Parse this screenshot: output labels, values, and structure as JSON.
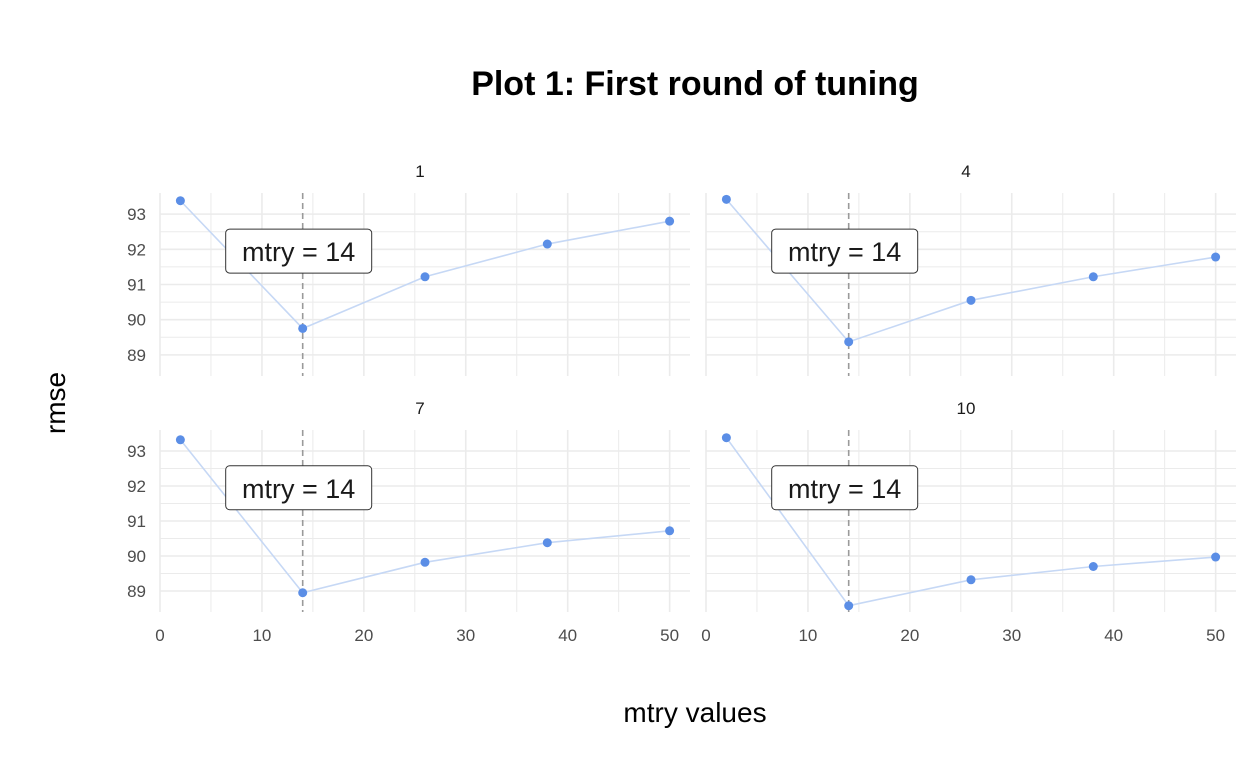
{
  "chart_data": {
    "type": "line",
    "title": "Plot 1: First round of tuning",
    "xlabel": "mtry values",
    "ylabel": "rmse",
    "xlim": [
      0,
      52
    ],
    "ylim": [
      88.4,
      93.6
    ],
    "xticks": [
      0,
      10,
      20,
      30,
      40,
      50
    ],
    "yticks": [
      89,
      90,
      91,
      92,
      93
    ],
    "grid": true,
    "reference_line": {
      "x": 14,
      "style": "dashed"
    },
    "colors": {
      "line": "#c6d8f5",
      "point": "#5b8ee6",
      "vline": "#9a9a9a",
      "grid": "#ebebeb"
    },
    "x": [
      2,
      14,
      26,
      38,
      50
    ],
    "panels": [
      {
        "facet": "1",
        "annotation": "mtry = 14",
        "values": [
          93.38,
          89.75,
          91.22,
          92.15,
          92.8
        ]
      },
      {
        "facet": "4",
        "annotation": "mtry = 14",
        "values": [
          93.42,
          89.37,
          90.55,
          91.22,
          91.78
        ]
      },
      {
        "facet": "7",
        "annotation": "mtry = 14",
        "values": [
          93.32,
          88.95,
          89.82,
          90.38,
          90.72
        ]
      },
      {
        "facet": "10",
        "annotation": "mtry = 14",
        "values": [
          93.38,
          88.58,
          89.32,
          89.7,
          89.97
        ]
      }
    ]
  }
}
